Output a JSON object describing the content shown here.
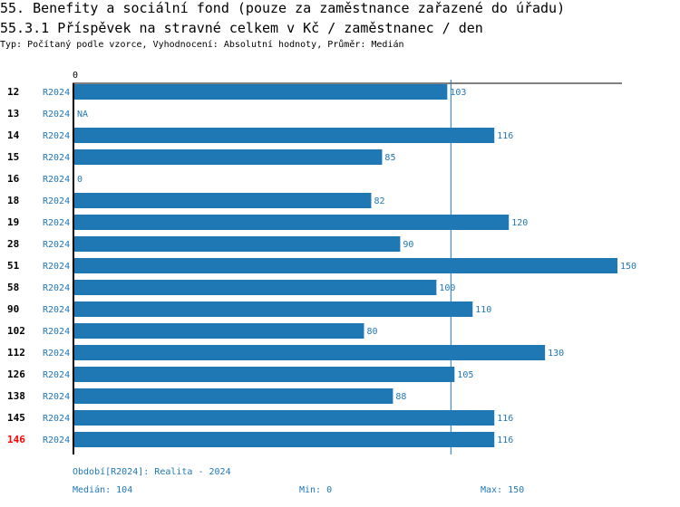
{
  "header": {
    "title": "55. Benefity a sociální fond (pouze za zaměstnance zařazené do úřadu)",
    "subtitle": "55.3.1 Příspěvek na stravné celkem v Kč / zaměstnanec / den",
    "info": "Typ: Počítaný podle vzorce, Vyhodnocení: Absolutní hodnoty, Průměr: Medián"
  },
  "chart_data": {
    "type": "bar",
    "orientation": "horizontal",
    "x_tick_label": "0",
    "xlim": [
      0,
      150
    ],
    "median_line": 104,
    "categories": [
      "12",
      "13",
      "14",
      "15",
      "16",
      "18",
      "19",
      "28",
      "51",
      "58",
      "90",
      "102",
      "112",
      "126",
      "138",
      "145",
      "146"
    ],
    "highlighted": "146",
    "period_labels": [
      "R2024",
      "R2024",
      "R2024",
      "R2024",
      "R2024",
      "R2024",
      "R2024",
      "R2024",
      "R2024",
      "R2024",
      "R2024",
      "R2024",
      "R2024",
      "R2024",
      "R2024",
      "R2024",
      "R2024"
    ],
    "values": [
      103,
      null,
      116,
      85,
      0,
      82,
      120,
      90,
      150,
      100,
      110,
      80,
      130,
      105,
      88,
      116,
      116
    ],
    "value_labels": [
      "103",
      "NA",
      "116",
      "85",
      "0",
      "82",
      "120",
      "90",
      "150",
      "100",
      "110",
      "80",
      "130",
      "105",
      "88",
      "116",
      "116"
    ],
    "colors": {
      "bar": "#1f77b4",
      "highlight": "#ff0000",
      "label": "#1f77b4",
      "axis": "#000000",
      "median": "#1f77b4"
    }
  },
  "footer": {
    "period": "Období[R2024]: Realita - 2024",
    "median": "Medián: 104",
    "min": "Min: 0",
    "max": "Max: 150"
  }
}
